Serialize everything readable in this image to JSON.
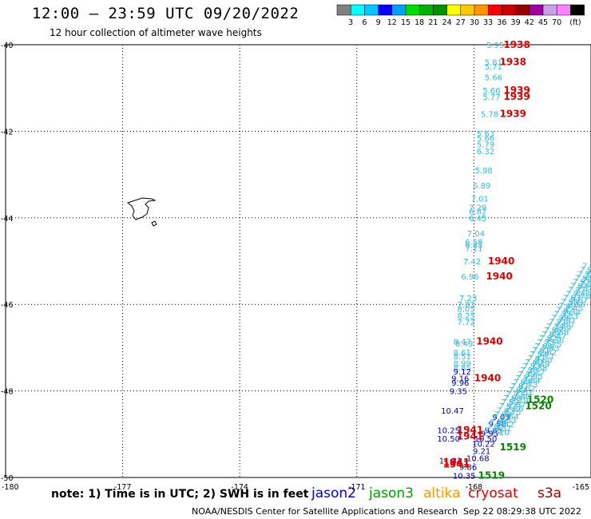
{
  "header": {
    "title": "12:00 — 23:59 UTC 09/20/2022",
    "subtitle": "12 hour collection of altimeter wave heights"
  },
  "legend": {
    "colors": [
      "#808080",
      "#00ffff",
      "#00c8ff",
      "#0000ff",
      "#00a0ff",
      "#00dd00",
      "#00b000",
      "#009000",
      "#ffff00",
      "#ffc800",
      "#ff9600",
      "#ff0000",
      "#c80000",
      "#960000",
      "#a000a0",
      "#c8a0e6",
      "#ff80ff",
      "#000000"
    ],
    "labels": [
      "3",
      "6",
      "9",
      "12",
      "15",
      "18",
      "21",
      "24",
      "27",
      "30",
      "33",
      "36",
      "39",
      "42",
      "45",
      "70",
      "(ft)"
    ]
  },
  "map": {
    "lon_labels": [
      "-180",
      "-177",
      "-174",
      "-171",
      "-168",
      "-165"
    ],
    "lat_labels": [
      "-40",
      "-42",
      "-44",
      "-46",
      "-48",
      "-50"
    ]
  },
  "observations": {
    "jason3": [
      {
        "lon": -167.45,
        "lat": -40.0,
        "v": "5.95"
      },
      {
        "lon": -167.5,
        "lat": -40.4,
        "v": "5.81"
      },
      {
        "lon": -167.5,
        "lat": -40.5,
        "v": "5.71"
      },
      {
        "lon": -167.5,
        "lat": -40.75,
        "v": "5.66"
      },
      {
        "lon": -167.55,
        "lat": -41.05,
        "v": "5.66"
      },
      {
        "lon": -167.55,
        "lat": -41.2,
        "v": "5.77"
      },
      {
        "lon": -167.6,
        "lat": -41.6,
        "v": "5.78"
      },
      {
        "lon": -167.7,
        "lat": -42.05,
        "v": "5.63"
      },
      {
        "lon": -167.7,
        "lat": -42.15,
        "v": "5.66"
      },
      {
        "lon": -167.7,
        "lat": -42.3,
        "v": "5.79"
      },
      {
        "lon": -167.7,
        "lat": -42.45,
        "v": "6.32"
      },
      {
        "lon": -167.75,
        "lat": -42.9,
        "v": "5.98"
      },
      {
        "lon": -167.8,
        "lat": -43.25,
        "v": "6.89"
      },
      {
        "lon": -167.85,
        "lat": -43.55,
        "v": "7.01"
      },
      {
        "lon": -167.9,
        "lat": -43.75,
        "v": "7.29"
      },
      {
        "lon": -167.9,
        "lat": -43.85,
        "v": "6.82"
      },
      {
        "lon": -167.9,
        "lat": -44.0,
        "v": "6.45"
      },
      {
        "lon": -167.95,
        "lat": -44.35,
        "v": "7.04"
      },
      {
        "lon": -168.0,
        "lat": -44.55,
        "v": "6.58"
      },
      {
        "lon": -168.0,
        "lat": -44.62,
        "v": "6.83"
      },
      {
        "lon": -168.0,
        "lat": -44.7,
        "v": "7.11"
      },
      {
        "lon": -168.05,
        "lat": -45.0,
        "v": "7.42"
      },
      {
        "lon": -168.1,
        "lat": -45.35,
        "v": "6.96"
      },
      {
        "lon": -168.15,
        "lat": -45.85,
        "v": "7.23"
      },
      {
        "lon": -168.2,
        "lat": -46.0,
        "v": "7.83"
      },
      {
        "lon": -168.2,
        "lat": -46.1,
        "v": "8.05"
      },
      {
        "lon": -168.2,
        "lat": -46.25,
        "v": "8.25"
      },
      {
        "lon": -168.2,
        "lat": -46.4,
        "v": "7.72"
      },
      {
        "lon": -168.3,
        "lat": -46.85,
        "v": "8.47"
      },
      {
        "lon": -168.25,
        "lat": -46.9,
        "v": "8.49"
      },
      {
        "lon": -168.3,
        "lat": -47.1,
        "v": "8.61"
      },
      {
        "lon": -168.3,
        "lat": -47.2,
        "v": "8.51"
      },
      {
        "lon": -168.3,
        "lat": -47.35,
        "v": "8.99"
      },
      {
        "lon": -168.3,
        "lat": -47.45,
        "v": "8.85"
      }
    ],
    "jason2": [
      {
        "lon": -168.3,
        "lat": -47.55,
        "v": "9.12"
      },
      {
        "lon": -168.35,
        "lat": -47.7,
        "v": "9.16"
      },
      {
        "lon": -168.35,
        "lat": -47.8,
        "v": "9.96"
      },
      {
        "lon": -168.4,
        "lat": -48.0,
        "v": "9.35"
      },
      {
        "lon": -168.55,
        "lat": -48.45,
        "v": "10.47"
      },
      {
        "lon": -168.65,
        "lat": -48.9,
        "v": "10.25"
      },
      {
        "lon": -168.65,
        "lat": -49.1,
        "v": "10.50"
      },
      {
        "lon": -168.6,
        "lat": -49.6,
        "v": "11.32"
      },
      {
        "lon": -168.15,
        "lat": -49.75,
        "v": "9.86"
      },
      {
        "lon": -168.25,
        "lat": -49.95,
        "v": "10.35"
      },
      {
        "lon": -167.9,
        "lat": -49.55,
        "v": "10.68"
      },
      {
        "lon": -167.8,
        "lat": -49.38,
        "v": "9.21"
      },
      {
        "lon": -167.75,
        "lat": -49.22,
        "v": "10.22"
      },
      {
        "lon": -167.7,
        "lat": -49.1,
        "v": "10.50"
      },
      {
        "lon": -167.6,
        "lat": -48.98,
        "v": "9.95"
      },
      {
        "lon": -167.5,
        "lat": -48.9,
        "v": "9.85"
      },
      {
        "lon": -167.4,
        "lat": -48.75,
        "v": "9.58"
      },
      {
        "lon": -167.3,
        "lat": -48.6,
        "v": "9.03"
      }
    ],
    "cryosat_labels": [
      {
        "lon": -166.9,
        "lat": -40.0,
        "v": "1938"
      },
      {
        "lon": -167.0,
        "lat": -40.4,
        "v": "1938"
      },
      {
        "lon": -166.9,
        "lat": -41.05,
        "v": "1939"
      },
      {
        "lon": -166.9,
        "lat": -41.2,
        "v": "1939"
      },
      {
        "lon": -167.0,
        "lat": -41.6,
        "v": "1939"
      },
      {
        "lon": -167.3,
        "lat": -45.0,
        "v": "1940"
      },
      {
        "lon": -167.35,
        "lat": -45.35,
        "v": "1940"
      },
      {
        "lon": -167.6,
        "lat": -46.85,
        "v": "1940"
      },
      {
        "lon": -167.65,
        "lat": -47.7,
        "v": "1940"
      },
      {
        "lon": -168.1,
        "lat": -48.9,
        "v": "1941"
      },
      {
        "lon": -168.1,
        "lat": -49.05,
        "v": "1941"
      },
      {
        "lon": -168.45,
        "lat": -49.65,
        "v": "1941"
      },
      {
        "lon": -168.45,
        "lat": -49.7,
        "v": "1941"
      }
    ],
    "jason3_time_labels": [
      {
        "lon": -166.3,
        "lat": -48.2,
        "v": "1520"
      },
      {
        "lon": -166.35,
        "lat": -48.35,
        "v": "1520"
      },
      {
        "lon": -167.0,
        "lat": -49.3,
        "v": "1519"
      },
      {
        "lon": -167.55,
        "lat": -49.95,
        "v": "1519"
      }
    ],
    "diagonal_track": {
      "start": {
        "lon": -167.5,
        "lat": -48.9
      },
      "end": {
        "lon": -165.0,
        "lat": -45.1
      },
      "count": 42,
      "v": "7"
    }
  },
  "footer": {
    "note": "note:  1) Time is in UTC; 2) SWH is in feet",
    "satellites": [
      {
        "name": "jason2",
        "color": "#0000e0"
      },
      {
        "name": "jason3",
        "color": "#00a000"
      },
      {
        "name": "altika",
        "color": "#ff9900"
      },
      {
        "name": "cryosat",
        "color": "#e00000"
      },
      {
        "name": "s3a",
        "color": "#a00000"
      }
    ],
    "credit": "NOAA/NESDIS Center for Satellite Applications and Research",
    "timestamp": "Sep 22 08:29:38 UTC 2022"
  }
}
